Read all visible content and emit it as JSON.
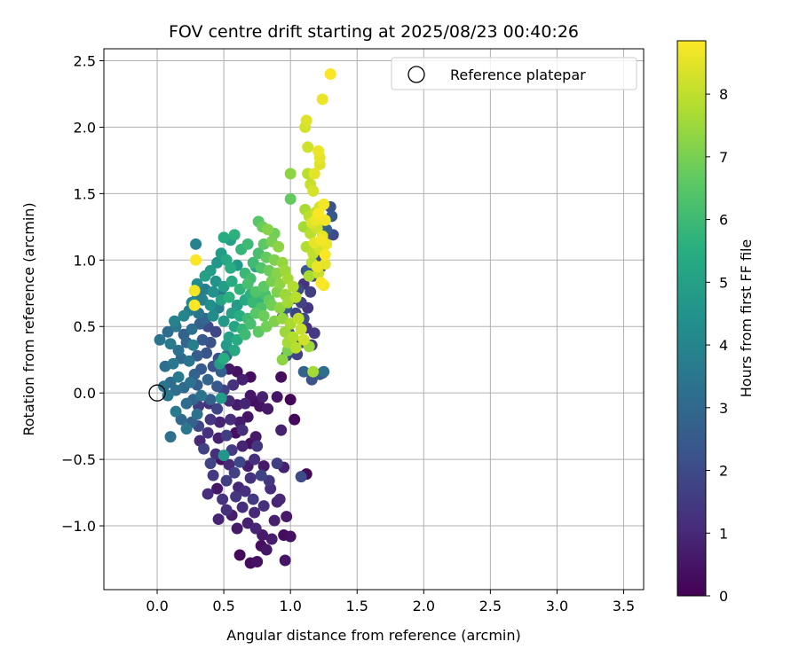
{
  "chart_data": {
    "type": "scatter",
    "title": "FOV centre drift starting at 2025/08/23 00:40:26",
    "xlabel": "Angular distance from reference (arcmin)",
    "ylabel": "Rotation from reference (arcmin)",
    "xlim": [
      -0.4,
      3.65
    ],
    "ylim": [
      -1.48,
      2.59
    ],
    "xticks": [
      0.0,
      0.5,
      1.0,
      1.5,
      2.0,
      2.5,
      3.0,
      3.5
    ],
    "xtick_labels": [
      "0.0",
      "0.5",
      "1.0",
      "1.5",
      "2.0",
      "2.5",
      "3.0",
      "3.5"
    ],
    "yticks": [
      -1.0,
      -0.5,
      0.0,
      0.5,
      1.0,
      1.5,
      2.0,
      2.5
    ],
    "ytick_labels": [
      "−1.0",
      "−0.5",
      "0.0",
      "0.5",
      "1.0",
      "1.5",
      "2.0",
      "2.5"
    ],
    "grid": true,
    "legend": {
      "position": "top-right",
      "entries": [
        "Reference platepar"
      ]
    },
    "reference_point": {
      "x": 0.0,
      "y": 0.0
    },
    "colorbar": {
      "label": "Hours from first FF file",
      "min": 0,
      "max": 8.85,
      "ticks": [
        0,
        1,
        2,
        3,
        4,
        5,
        6,
        7,
        8
      ],
      "tick_labels": [
        "0",
        "1",
        "2",
        "3",
        "4",
        "5",
        "6",
        "7",
        "8"
      ],
      "colormap": "viridis"
    },
    "points": [
      [
        0.62,
        -1.22,
        0.2
      ],
      [
        0.7,
        -1.28,
        0.3
      ],
      [
        0.75,
        -1.27,
        0.4
      ],
      [
        0.96,
        -1.26,
        0.5
      ],
      [
        0.78,
        -1.15,
        0.3
      ],
      [
        0.82,
        -1.18,
        0.5
      ],
      [
        1.0,
        -1.08,
        0.4
      ],
      [
        0.95,
        -1.07,
        0.3
      ],
      [
        0.79,
        -1.07,
        0.6
      ],
      [
        0.86,
        -1.1,
        0.7
      ],
      [
        0.46,
        -0.95,
        0.9
      ],
      [
        0.6,
        -1.02,
        0.6
      ],
      [
        0.68,
        -0.98,
        0.8
      ],
      [
        0.74,
        -1.02,
        0.9
      ],
      [
        0.97,
        -0.93,
        0.6
      ],
      [
        0.88,
        -0.96,
        0.8
      ],
      [
        0.73,
        -0.9,
        1.0
      ],
      [
        0.64,
        -0.86,
        1.1
      ],
      [
        0.52,
        -0.88,
        1.2
      ],
      [
        0.56,
        -0.92,
        0.7
      ],
      [
        0.8,
        -0.85,
        1.2
      ],
      [
        0.92,
        -0.8,
        1.0
      ],
      [
        0.38,
        -0.76,
        1.1
      ],
      [
        0.49,
        -0.8,
        1.3
      ],
      [
        0.59,
        -0.78,
        1.4
      ],
      [
        0.66,
        -0.74,
        1.2
      ],
      [
        0.72,
        -0.8,
        1.5
      ],
      [
        0.85,
        -0.72,
        1.1
      ],
      [
        0.9,
        -0.82,
        0.9
      ],
      [
        0.45,
        -0.72,
        0.5
      ],
      [
        0.42,
        -0.62,
        1.5
      ],
      [
        0.52,
        -0.66,
        1.6
      ],
      [
        0.58,
        -0.6,
        1.7
      ],
      [
        0.7,
        -0.64,
        1.3
      ],
      [
        0.78,
        -0.62,
        1.8
      ],
      [
        0.84,
        -0.66,
        1.4
      ],
      [
        0.61,
        -0.71,
        0.9
      ],
      [
        1.12,
        -0.61,
        0.2
      ],
      [
        1.08,
        -0.63,
        2.0
      ],
      [
        0.4,
        -0.53,
        1.8
      ],
      [
        0.48,
        -0.5,
        0.4
      ],
      [
        0.54,
        -0.54,
        1.0
      ],
      [
        0.62,
        -0.52,
        1.9
      ],
      [
        0.68,
        -0.55,
        0.7
      ],
      [
        0.73,
        -0.5,
        1.2
      ],
      [
        0.8,
        -0.55,
        0.6
      ],
      [
        0.9,
        -0.53,
        1.6
      ],
      [
        0.95,
        -0.56,
        0.8
      ],
      [
        0.35,
        -0.42,
        1.7
      ],
      [
        0.44,
        -0.46,
        1.1
      ],
      [
        0.5,
        -0.47,
        4.6
      ],
      [
        0.56,
        -0.43,
        1.5
      ],
      [
        0.64,
        -0.4,
        0.9
      ],
      [
        0.7,
        -0.38,
        0.4
      ],
      [
        0.75,
        -0.4,
        1.4
      ],
      [
        0.32,
        -0.36,
        1.0
      ],
      [
        0.38,
        -0.3,
        1.3
      ],
      [
        0.46,
        -0.34,
        0.8
      ],
      [
        0.52,
        -0.32,
        1.6
      ],
      [
        0.59,
        -0.3,
        0.3
      ],
      [
        0.64,
        -0.28,
        1.2
      ],
      [
        0.74,
        -0.33,
        0.6
      ],
      [
        0.31,
        -0.25,
        1.9
      ],
      [
        0.4,
        -0.2,
        1.4
      ],
      [
        0.47,
        -0.22,
        0.9
      ],
      [
        0.55,
        -0.2,
        1.1
      ],
      [
        0.62,
        -0.22,
        0.7
      ],
      [
        0.68,
        -0.18,
        0.5
      ],
      [
        0.93,
        -0.28,
        0.8
      ],
      [
        0.77,
        -0.1,
        0.4
      ],
      [
        0.83,
        -0.12,
        0.6
      ],
      [
        1.03,
        -0.2,
        0.2
      ],
      [
        0.66,
        -0.08,
        0.9
      ],
      [
        0.72,
        -0.06,
        0.3
      ],
      [
        0.31,
        -0.1,
        1.5
      ],
      [
        0.39,
        -0.08,
        1.2
      ],
      [
        0.45,
        -0.12,
        1.8
      ],
      [
        0.54,
        -0.06,
        1.0
      ],
      [
        0.6,
        -0.09,
        0.7
      ],
      [
        0.7,
        -0.02,
        0.5
      ],
      [
        0.79,
        -0.03,
        0.8
      ],
      [
        0.9,
        -0.03,
        0.5
      ],
      [
        1.0,
        -0.05,
        0.1
      ],
      [
        0.5,
        0.02,
        1.7
      ],
      [
        0.7,
        0.12,
        0.3
      ],
      [
        0.57,
        0.06,
        1.3
      ],
      [
        0.64,
        0.1,
        0.8
      ],
      [
        0.54,
        0.18,
        0.6
      ],
      [
        0.6,
        0.16,
        0.4
      ],
      [
        0.93,
        0.12,
        0.3
      ],
      [
        0.1,
        -0.33,
        3.2
      ],
      [
        0.22,
        -0.27,
        3.5
      ],
      [
        0.18,
        -0.2,
        3.0
      ],
      [
        0.26,
        -0.22,
        2.8
      ],
      [
        0.3,
        -0.16,
        3.3
      ],
      [
        0.14,
        -0.14,
        3.6
      ],
      [
        0.22,
        -0.08,
        3.1
      ],
      [
        0.27,
        -0.05,
        2.9
      ],
      [
        0.33,
        -0.02,
        3.4
      ],
      [
        0.4,
        -0.05,
        2.7
      ],
      [
        0.08,
        -0.02,
        3.5
      ],
      [
        0.14,
        0.02,
        3.2
      ],
      [
        0.2,
        0.04,
        3.0
      ],
      [
        0.25,
        0.08,
        3.3
      ],
      [
        0.3,
        0.06,
        2.6
      ],
      [
        0.38,
        0.1,
        2.9
      ],
      [
        0.45,
        0.05,
        2.4
      ],
      [
        0.05,
        0.05,
        3.4
      ],
      [
        0.1,
        0.08,
        3.1
      ],
      [
        0.16,
        0.12,
        3.6
      ],
      [
        0.28,
        0.14,
        2.8
      ],
      [
        0.33,
        0.18,
        2.5
      ],
      [
        0.42,
        0.2,
        2.2
      ],
      [
        0.48,
        0.16,
        2.7
      ],
      [
        0.06,
        0.2,
        3.2
      ],
      [
        0.12,
        0.22,
        3.5
      ],
      [
        0.18,
        0.26,
        3.0
      ],
      [
        0.24,
        0.24,
        3.4
      ],
      [
        0.3,
        0.28,
        2.6
      ],
      [
        0.37,
        0.3,
        2.3
      ],
      [
        0.46,
        0.26,
        2.1
      ],
      [
        0.52,
        0.28,
        3.0
      ],
      [
        0.02,
        0.4,
        3.4
      ],
      [
        0.1,
        0.37,
        3.6
      ],
      [
        0.16,
        0.32,
        3.3
      ],
      [
        0.22,
        0.38,
        2.9
      ],
      [
        0.27,
        0.36,
        3.8
      ],
      [
        0.34,
        0.4,
        2.5
      ],
      [
        0.4,
        0.38,
        2.2
      ],
      [
        0.08,
        0.46,
        3.1
      ],
      [
        0.14,
        0.5,
        3.5
      ],
      [
        0.2,
        0.44,
        2.8
      ],
      [
        0.26,
        0.48,
        3.2
      ],
      [
        0.32,
        0.52,
        2.7
      ],
      [
        0.38,
        0.5,
        2.0
      ],
      [
        0.44,
        0.46,
        1.9
      ],
      [
        0.13,
        0.54,
        3.9
      ],
      [
        0.2,
        0.58,
        4.0
      ],
      [
        0.24,
        0.62,
        3.7
      ],
      [
        0.31,
        0.6,
        3.4
      ],
      [
        0.36,
        0.56,
        3.0
      ],
      [
        0.42,
        0.58,
        4.2
      ],
      [
        0.26,
        0.68,
        4.1
      ],
      [
        0.3,
        0.74,
        3.6
      ],
      [
        0.34,
        0.7,
        3.9
      ],
      [
        0.4,
        0.66,
        4.4
      ],
      [
        0.46,
        0.64,
        3.8
      ],
      [
        0.3,
        0.82,
        4.3
      ],
      [
        0.36,
        0.78,
        3.8
      ],
      [
        0.42,
        0.76,
        4.5
      ],
      [
        0.48,
        0.74,
        3.4
      ],
      [
        0.29,
        1.12,
        3.9
      ],
      [
        1.25,
        0.16,
        3.2
      ],
      [
        1.1,
        0.16,
        2.8
      ],
      [
        1.16,
        0.1,
        2.2
      ],
      [
        1.24,
        0.15,
        1.8
      ],
      [
        1.22,
        0.14,
        2.4
      ],
      [
        1.3,
        1.4,
        2.2
      ],
      [
        1.31,
        1.33,
        2.5
      ],
      [
        1.32,
        1.19,
        2.0
      ],
      [
        1.27,
        1.23,
        2.8
      ],
      [
        1.25,
        1.14,
        2.3
      ],
      [
        1.22,
        1.02,
        1.8
      ],
      [
        1.18,
        0.98,
        2.1
      ],
      [
        1.23,
        0.95,
        1.5
      ],
      [
        1.17,
        0.88,
        1.9
      ],
      [
        1.12,
        0.92,
        2.4
      ],
      [
        1.1,
        0.82,
        1.3
      ],
      [
        1.15,
        0.76,
        1.6
      ],
      [
        1.06,
        0.78,
        2.0
      ],
      [
        1.02,
        0.71,
        2.3
      ],
      [
        1.08,
        0.68,
        1.7
      ],
      [
        1.13,
        0.64,
        1.4
      ],
      [
        0.97,
        0.64,
        2.5
      ],
      [
        1.04,
        0.6,
        1.8
      ],
      [
        1.1,
        0.56,
        2.1
      ],
      [
        0.94,
        0.57,
        1.6
      ],
      [
        1.12,
        0.49,
        1.3
      ],
      [
        1.18,
        0.45,
        1.5
      ],
      [
        0.99,
        0.45,
        2.2
      ],
      [
        1.08,
        0.38,
        1.9
      ],
      [
        1.16,
        0.36,
        1.4
      ],
      [
        1.05,
        0.29,
        1.7
      ],
      [
        0.97,
        0.28,
        2.0
      ],
      [
        0.5,
        1.17,
        5.4
      ],
      [
        0.55,
        1.15,
        5.0
      ],
      [
        0.58,
        1.19,
        5.6
      ],
      [
        0.63,
        1.08,
        5.8
      ],
      [
        0.68,
        1.12,
        6.0
      ],
      [
        0.48,
        1.05,
        4.9
      ],
      [
        0.52,
        1.0,
        5.3
      ],
      [
        0.45,
        0.98,
        4.6
      ],
      [
        0.4,
        0.92,
        4.8
      ],
      [
        0.36,
        0.88,
        5.0
      ],
      [
        0.55,
        0.94,
        5.5
      ],
      [
        0.6,
        0.96,
        4.7
      ],
      [
        0.66,
        0.9,
        5.9
      ],
      [
        0.7,
        0.86,
        6.1
      ],
      [
        0.74,
        0.95,
        5.2
      ],
      [
        0.44,
        0.84,
        4.5
      ],
      [
        0.5,
        0.8,
        4.9
      ],
      [
        0.56,
        0.84,
        5.4
      ],
      [
        0.62,
        0.78,
        5.7
      ],
      [
        0.68,
        0.82,
        6.2
      ],
      [
        0.74,
        0.76,
        6.4
      ],
      [
        0.8,
        0.8,
        6.6
      ],
      [
        0.48,
        0.7,
        5.1
      ],
      [
        0.54,
        0.72,
        5.6
      ],
      [
        0.6,
        0.66,
        4.8
      ],
      [
        0.66,
        0.7,
        5.3
      ],
      [
        0.72,
        0.68,
        5.9
      ],
      [
        0.78,
        0.64,
        6.3
      ],
      [
        0.84,
        0.7,
        6.7
      ],
      [
        0.56,
        0.6,
        5.0
      ],
      [
        0.62,
        0.58,
        5.5
      ],
      [
        0.68,
        0.56,
        6.0
      ],
      [
        0.74,
        0.6,
        6.5
      ],
      [
        0.8,
        0.58,
        6.8
      ],
      [
        0.5,
        0.54,
        4.7
      ],
      [
        0.58,
        0.5,
        5.2
      ],
      [
        0.64,
        0.48,
        5.8
      ],
      [
        0.7,
        0.52,
        6.2
      ],
      [
        0.76,
        0.46,
        6.6
      ],
      [
        0.82,
        0.5,
        6.9
      ],
      [
        0.88,
        0.54,
        7.1
      ],
      [
        0.54,
        0.42,
        5.0
      ],
      [
        0.6,
        0.4,
        5.4
      ],
      [
        0.66,
        0.44,
        6.0
      ],
      [
        0.52,
        0.36,
        4.8
      ],
      [
        0.58,
        0.32,
        5.3
      ],
      [
        0.5,
        0.26,
        5.5
      ],
      [
        0.47,
        0.22,
        4.9
      ],
      [
        0.48,
        -0.04,
        4.8
      ],
      [
        0.76,
        1.29,
        6.5
      ],
      [
        0.79,
        1.25,
        6.8
      ],
      [
        0.83,
        1.23,
        7.2
      ],
      [
        0.88,
        1.2,
        6.9
      ],
      [
        0.8,
        1.12,
        6.6
      ],
      [
        0.86,
        1.14,
        7.0
      ],
      [
        0.91,
        1.1,
        7.3
      ],
      [
        0.76,
        1.05,
        6.2
      ],
      [
        0.82,
        1.02,
        6.7
      ],
      [
        0.88,
        1.0,
        7.1
      ],
      [
        0.94,
        0.98,
        7.4
      ],
      [
        0.72,
        0.98,
        6.0
      ],
      [
        0.78,
        0.94,
        6.4
      ],
      [
        0.84,
        0.92,
        6.8
      ],
      [
        0.9,
        0.9,
        7.2
      ],
      [
        0.96,
        0.92,
        7.5
      ],
      [
        0.86,
        0.84,
        7.0
      ],
      [
        0.92,
        0.82,
        7.3
      ],
      [
        0.98,
        0.86,
        7.6
      ],
      [
        0.9,
        0.76,
        7.1
      ],
      [
        0.96,
        0.74,
        7.5
      ],
      [
        1.02,
        0.8,
        7.8
      ],
      [
        0.86,
        0.66,
        6.9
      ],
      [
        0.92,
        0.64,
        7.3
      ],
      [
        0.98,
        0.68,
        7.6
      ],
      [
        1.04,
        0.72,
        7.9
      ],
      [
        0.94,
        0.56,
        7.4
      ],
      [
        1.0,
        0.52,
        7.7
      ],
      [
        1.06,
        0.56,
        8.0
      ],
      [
        0.96,
        0.46,
        7.5
      ],
      [
        1.02,
        0.42,
        7.8
      ],
      [
        1.08,
        0.48,
        8.1
      ],
      [
        0.98,
        0.38,
        7.6
      ],
      [
        1.04,
        0.34,
        7.9
      ],
      [
        1.1,
        0.4,
        8.2
      ],
      [
        1.14,
        0.35,
        7.5
      ],
      [
        0.94,
        0.25,
        7.3
      ],
      [
        0.98,
        0.32,
        7.0
      ],
      [
        1.0,
        1.65,
        7.3
      ],
      [
        1.0,
        1.46,
        6.7
      ],
      [
        1.13,
        1.65,
        7.9
      ],
      [
        1.15,
        1.57,
        8.1
      ],
      [
        1.17,
        1.52,
        8.3
      ],
      [
        1.11,
        1.38,
        7.7
      ],
      [
        1.14,
        1.33,
        7.9
      ],
      [
        1.19,
        1.36,
        8.1
      ],
      [
        1.22,
        1.4,
        8.3
      ],
      [
        1.1,
        1.25,
        7.6
      ],
      [
        1.15,
        1.2,
        7.9
      ],
      [
        1.2,
        1.24,
        8.2
      ],
      [
        1.24,
        1.18,
        8.5
      ],
      [
        1.12,
        1.1,
        7.8
      ],
      [
        1.17,
        1.05,
        8.0
      ],
      [
        1.22,
        1.08,
        8.3
      ],
      [
        1.26,
        0.97,
        8.5
      ],
      [
        1.16,
        0.98,
        7.9
      ],
      [
        1.21,
        0.9,
        8.1
      ],
      [
        1.14,
        0.88,
        7.7
      ],
      [
        1.25,
        0.81,
        8.7
      ],
      [
        1.17,
        0.16,
        7.6
      ],
      [
        0.76,
        0.7,
        5.8
      ],
      [
        0.81,
        0.74,
        6.2
      ],
      [
        0.7,
        0.74,
        5.6
      ],
      [
        1.12,
        2.05,
        8.4
      ],
      [
        1.11,
        2.0,
        8.3
      ],
      [
        1.13,
        1.85,
        8.2
      ],
      [
        1.22,
        1.77,
        8.5
      ],
      [
        1.22,
        1.72,
        8.4
      ],
      [
        1.21,
        1.82,
        8.6
      ],
      [
        1.24,
        2.21,
        8.6
      ],
      [
        1.3,
        2.4,
        8.8
      ],
      [
        1.18,
        1.65,
        8.5
      ],
      [
        1.25,
        1.42,
        8.7
      ],
      [
        1.19,
        1.3,
        8.6
      ],
      [
        1.16,
        1.28,
        8.4
      ],
      [
        1.21,
        1.35,
        8.8
      ],
      [
        1.26,
        1.3,
        8.7
      ],
      [
        1.23,
        1.15,
        8.7
      ],
      [
        1.26,
        1.04,
        8.8
      ],
      [
        1.2,
        0.95,
        8.6
      ],
      [
        1.23,
        0.83,
        8.8
      ],
      [
        1.27,
        1.12,
        8.6
      ],
      [
        1.18,
        1.13,
        8.5
      ],
      [
        0.29,
        1.0,
        8.8
      ],
      [
        0.28,
        0.77,
        8.7
      ],
      [
        0.28,
        0.66,
        8.8
      ]
    ]
  }
}
